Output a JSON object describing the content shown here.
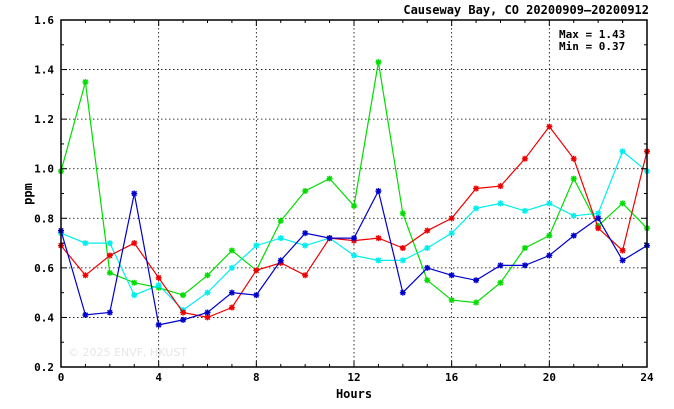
{
  "chart_data": {
    "type": "line",
    "title": "Causeway Bay, CO 20200909–20200912",
    "xlabel": "Hours",
    "ylabel": "ppm",
    "xlim": [
      0,
      24
    ],
    "ylim": [
      0.2,
      1.6
    ],
    "xticks": [
      0,
      4,
      8,
      12,
      16,
      20,
      24
    ],
    "yticks": [
      0.2,
      0.4,
      0.6,
      0.8,
      1.0,
      1.2,
      1.4,
      1.6
    ],
    "grid": true,
    "annotations": [
      "Max = 1.43",
      "Min = 0.37"
    ],
    "watermark": "© 2025  ENVF, HKUST",
    "x": [
      0,
      1,
      2,
      3,
      4,
      5,
      6,
      7,
      8,
      9,
      10,
      11,
      12,
      13,
      14,
      15,
      16,
      17,
      18,
      19,
      20,
      21,
      22,
      23,
      24
    ],
    "series": [
      {
        "color": "#00dd00",
        "values": [
          0.99,
          1.35,
          0.58,
          0.54,
          0.52,
          0.49,
          0.57,
          0.67,
          0.59,
          0.79,
          0.91,
          0.96,
          0.85,
          1.43,
          0.82,
          0.55,
          0.47,
          0.46,
          0.54,
          0.68,
          0.73,
          0.96,
          0.77,
          0.86,
          0.76
        ]
      },
      {
        "color": "#00eeee",
        "values": [
          0.74,
          0.7,
          0.7,
          0.49,
          0.53,
          0.43,
          0.5,
          0.6,
          0.69,
          0.72,
          0.69,
          0.72,
          0.65,
          0.63,
          0.63,
          0.68,
          0.74,
          0.84,
          0.86,
          0.83,
          0.86,
          0.81,
          0.82,
          1.07,
          0.99
        ]
      },
      {
        "color": "#ee0000",
        "values": [
          0.69,
          0.57,
          0.65,
          0.7,
          0.56,
          0.42,
          0.4,
          0.44,
          0.59,
          0.62,
          0.57,
          0.72,
          0.71,
          0.72,
          0.68,
          0.75,
          0.8,
          0.92,
          0.93,
          1.04,
          1.17,
          1.04,
          0.76,
          0.67,
          1.07
        ]
      },
      {
        "color": "#0000cc",
        "values": [
          0.75,
          0.41,
          0.42,
          0.9,
          0.37,
          0.39,
          0.42,
          0.5,
          0.49,
          0.63,
          0.74,
          0.72,
          0.72,
          0.91,
          0.5,
          0.6,
          0.57,
          0.55,
          0.61,
          0.61,
          0.65,
          0.73,
          0.8,
          0.63,
          0.69
        ]
      }
    ]
  }
}
